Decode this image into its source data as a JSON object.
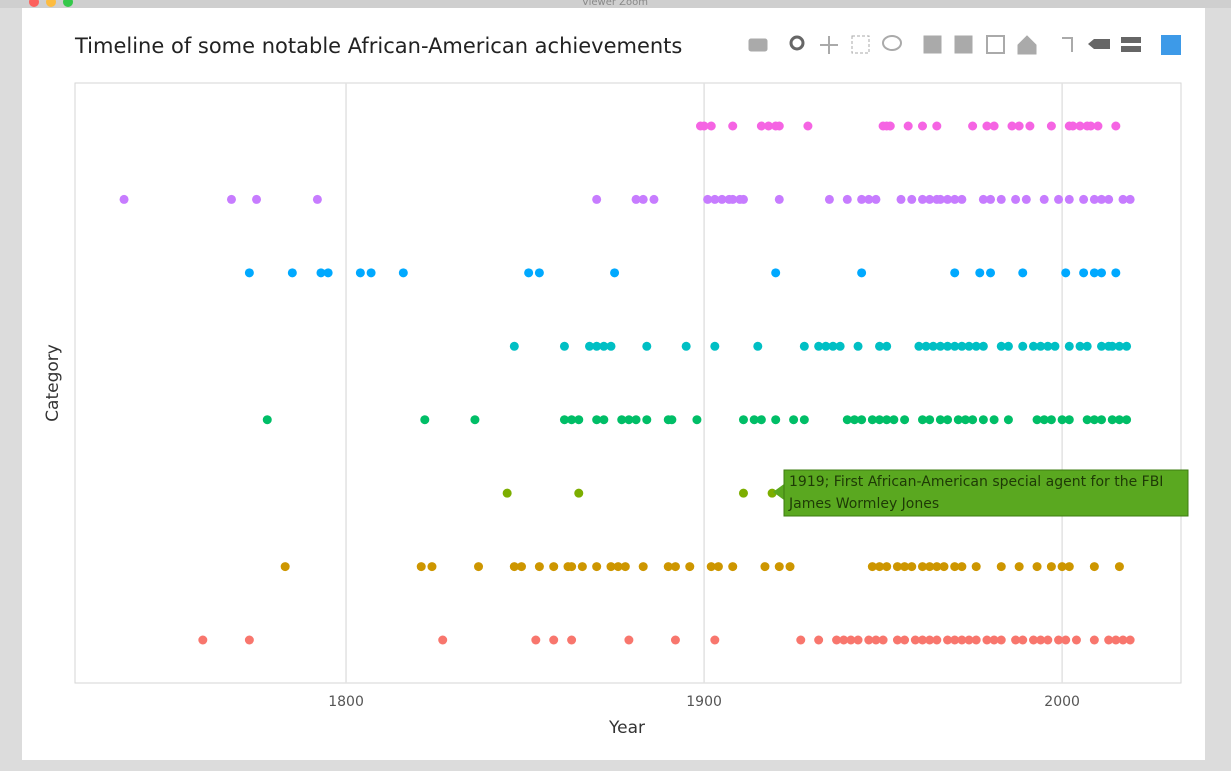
{
  "window_title": "Viewer Zoom",
  "chart_data": {
    "type": "scatter",
    "title": "Timeline of some notable African-American achievements",
    "x_label": "Year",
    "y_label": "Category",
    "xlim": [
      1724.3,
      2033.2
    ],
    "xticks": [
      1800,
      1900,
      2000
    ],
    "grid": true,
    "series": [
      {
        "color": "#f564e3",
        "x": [
          1899,
          1900,
          1902,
          1908,
          1916,
          1918,
          1920,
          1921,
          1929,
          1950,
          1951,
          1952,
          1957,
          1961,
          1965,
          1975,
          1979,
          1981,
          1986,
          1988,
          1991,
          1997,
          2002,
          2003,
          2005,
          2007,
          2008,
          2010,
          2015
        ]
      },
      {
        "color": "#c77cff",
        "x": [
          1738,
          1768,
          1775,
          1792,
          1870,
          1881,
          1883,
          1886,
          1901,
          1903,
          1905,
          1907,
          1908,
          1910,
          1911,
          1921,
          1935,
          1940,
          1944,
          1946,
          1948,
          1955,
          1958,
          1961,
          1963,
          1965,
          1966,
          1968,
          1970,
          1972,
          1978,
          1980,
          1983,
          1987,
          1990,
          1995,
          1999,
          2002,
          2006,
          2009,
          2011,
          2013,
          2017,
          2019
        ]
      },
      {
        "color": "#00a9ff",
        "x": [
          1773,
          1785,
          1793,
          1795,
          1804,
          1807,
          1816,
          1851,
          1854,
          1875,
          1920,
          1944,
          1970,
          1977,
          1980,
          1989,
          2001,
          2006,
          2009,
          2011,
          2015
        ]
      },
      {
        "color": "#00bfc4",
        "x": [
          1847,
          1861,
          1868,
          1870,
          1872,
          1874,
          1884,
          1895,
          1903,
          1915,
          1928,
          1932,
          1934,
          1936,
          1938,
          1943,
          1949,
          1951,
          1960,
          1962,
          1964,
          1966,
          1968,
          1970,
          1972,
          1974,
          1976,
          1978,
          1983,
          1985,
          1989,
          1992,
          1994,
          1996,
          1998,
          2002,
          2005,
          2007,
          2011,
          2013,
          2014,
          2016,
          2018
        ]
      },
      {
        "color": "#00be67",
        "x": [
          1778,
          1822,
          1836,
          1861,
          1863,
          1865,
          1870,
          1872,
          1877,
          1879,
          1881,
          1884,
          1890,
          1891,
          1898,
          1911,
          1914,
          1916,
          1920,
          1925,
          1928,
          1940,
          1942,
          1944,
          1947,
          1949,
          1951,
          1953,
          1956,
          1961,
          1963,
          1966,
          1968,
          1971,
          1973,
          1975,
          1978,
          1981,
          1985,
          1993,
          1995,
          1997,
          2000,
          2002,
          2007,
          2009,
          2011,
          2014,
          2016,
          2018
        ]
      },
      {
        "color": "#7cae00",
        "x": [
          1845,
          1865,
          1911,
          1919
        ]
      },
      {
        "color": "#cd9600",
        "x": [
          1783,
          1821,
          1824,
          1837,
          1847,
          1849,
          1854,
          1858,
          1862,
          1863,
          1866,
          1870,
          1874,
          1876,
          1878,
          1883,
          1890,
          1892,
          1896,
          1902,
          1904,
          1908,
          1917,
          1921,
          1924,
          1947,
          1949,
          1951,
          1954,
          1956,
          1958,
          1961,
          1963,
          1965,
          1967,
          1970,
          1972,
          1976,
          1983,
          1988,
          1993,
          1997,
          2000,
          2002,
          2009,
          2016
        ]
      },
      {
        "color": "#f8766d",
        "x": [
          1760,
          1773,
          1827,
          1853,
          1858,
          1863,
          1879,
          1892,
          1903,
          1927,
          1932,
          1937,
          1939,
          1941,
          1943,
          1946,
          1948,
          1950,
          1954,
          1956,
          1959,
          1961,
          1963,
          1965,
          1968,
          1970,
          1972,
          1974,
          1976,
          1979,
          1981,
          1983,
          1987,
          1989,
          1992,
          1994,
          1996,
          1999,
          2001,
          2004,
          2009,
          2013,
          2015,
          2017,
          2019
        ]
      }
    ]
  },
  "tooltip": {
    "lines": [
      "1919; First African-American special agent for the FBI",
      "James Wormley Jones"
    ]
  }
}
